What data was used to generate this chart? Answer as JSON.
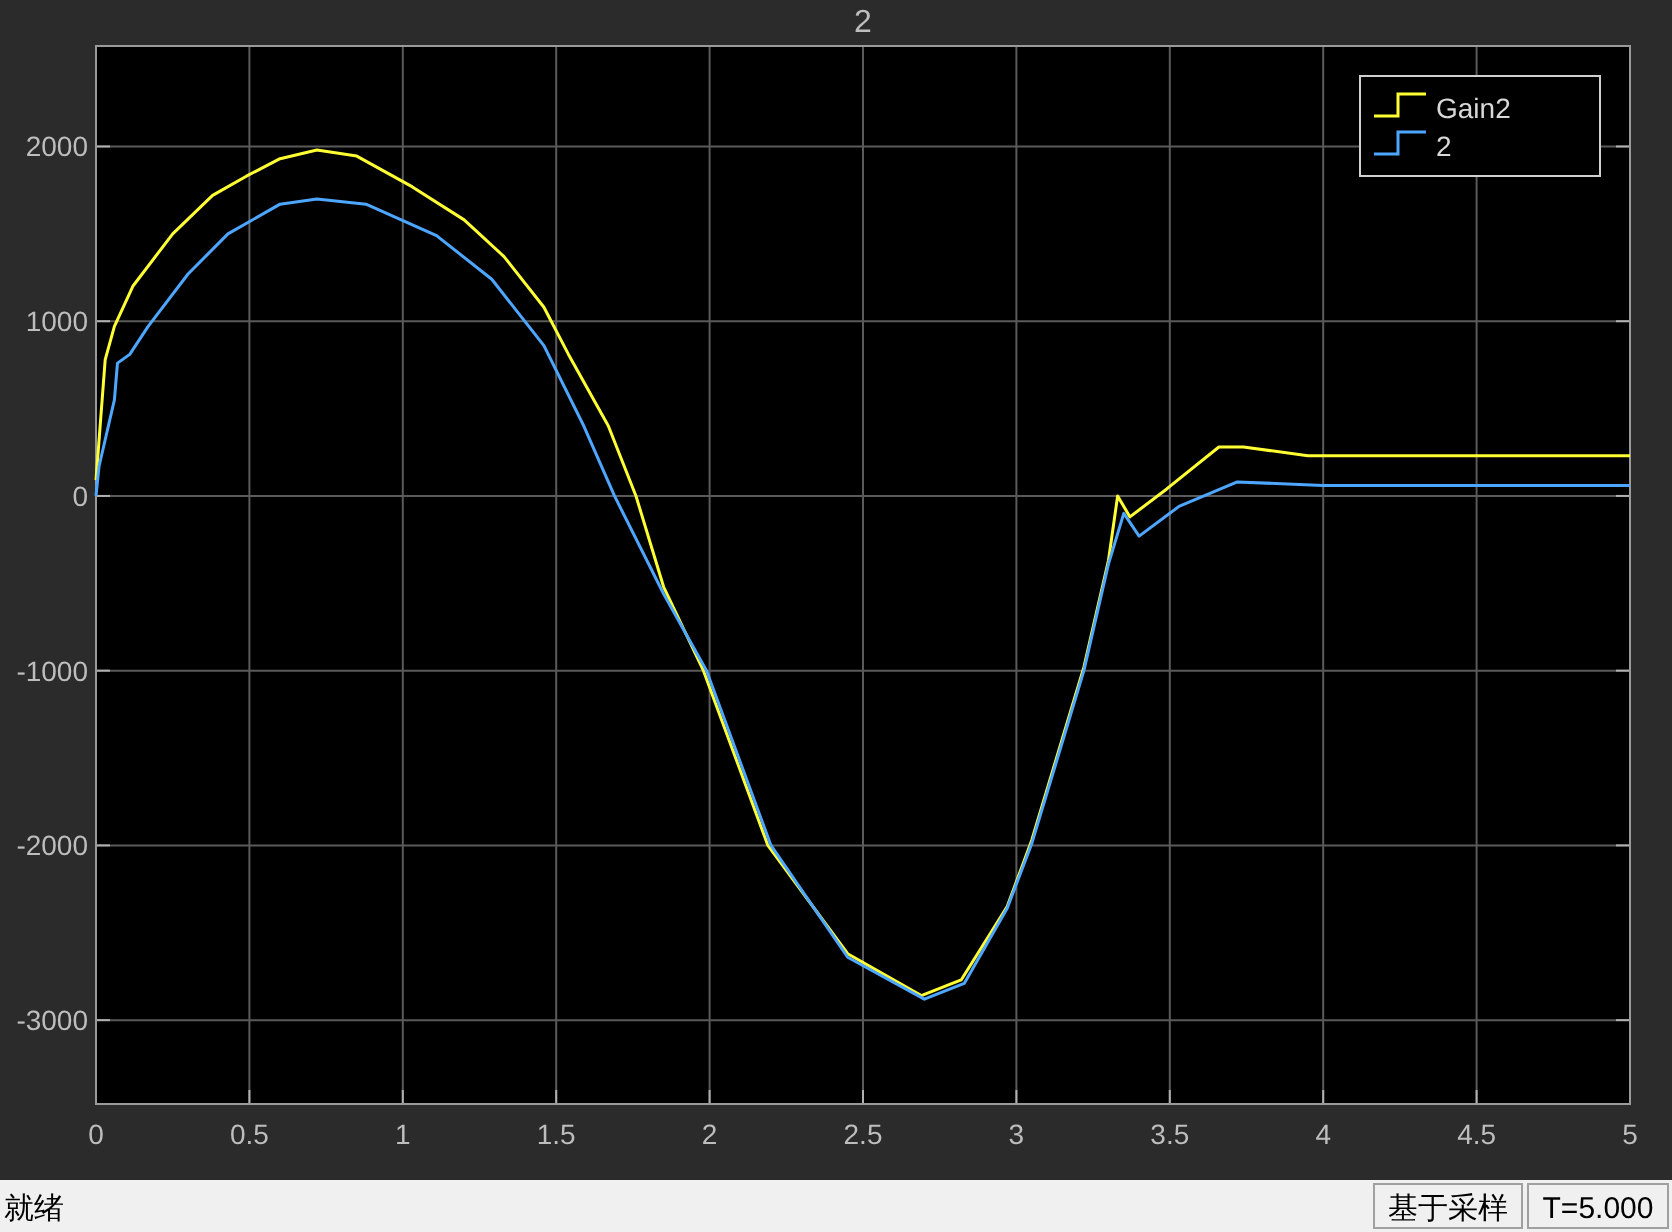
{
  "chart_data": {
    "type": "line",
    "title": "2",
    "xlim": [
      0,
      5
    ],
    "xticks": [
      0,
      0.5,
      1,
      1.5,
      2,
      2.5,
      3,
      3.5,
      4,
      4.5,
      5
    ],
    "ylim": [
      -3480,
      2575
    ],
    "yticks": [
      -3000,
      -2000,
      -1000,
      0,
      1000,
      2000
    ],
    "grid": true,
    "legend": "top right",
    "series": [
      {
        "name": "Gain2",
        "color": "#ffff33",
        "x": [
          0,
          0.03,
          0.06,
          0.12,
          0.25,
          0.38,
          0.49,
          0.6,
          0.72,
          0.85,
          1.03,
          1.2,
          1.33,
          1.46,
          1.54,
          1.67,
          1.76,
          1.85,
          1.98,
          2.19,
          2.45,
          2.69,
          2.82,
          2.97,
          3.05,
          3.22,
          3.3,
          3.33,
          3.37,
          3.49,
          3.66,
          3.74,
          3.95,
          5
        ],
        "values": [
          90,
          780,
          970,
          1200,
          1500,
          1720,
          1830,
          1930,
          1980,
          1945,
          1770,
          1580,
          1370,
          1080,
          810,
          400,
          0,
          -520,
          -1000,
          -2000,
          -2620,
          -2860,
          -2770,
          -2350,
          -1970,
          -980,
          -370,
          0,
          -120,
          40,
          280,
          280,
          230,
          230
        ]
      },
      {
        "name": "2",
        "color": "#4da6ff",
        "x": [
          0,
          0.01,
          0.06,
          0.07,
          0.11,
          0.17,
          0.3,
          0.43,
          0.6,
          0.72,
          0.88,
          1.11,
          1.29,
          1.46,
          1.59,
          1.69,
          1.85,
          1.99,
          2.2,
          2.45,
          2.7,
          2.83,
          2.97,
          3.05,
          3.22,
          3.3,
          3.35,
          3.4,
          3.53,
          3.72,
          4.0,
          5
        ],
        "values": [
          0,
          170,
          550,
          760,
          810,
          970,
          1270,
          1500,
          1670,
          1700,
          1670,
          1490,
          1240,
          860,
          400,
          0,
          -560,
          -1000,
          -2000,
          -2640,
          -2880,
          -2790,
          -2360,
          -1990,
          -1000,
          -390,
          -100,
          -230,
          -60,
          80,
          60,
          60
        ]
      }
    ],
    "annotations": [
      "就绪",
      "基于采样",
      "T=5.000"
    ]
  }
}
